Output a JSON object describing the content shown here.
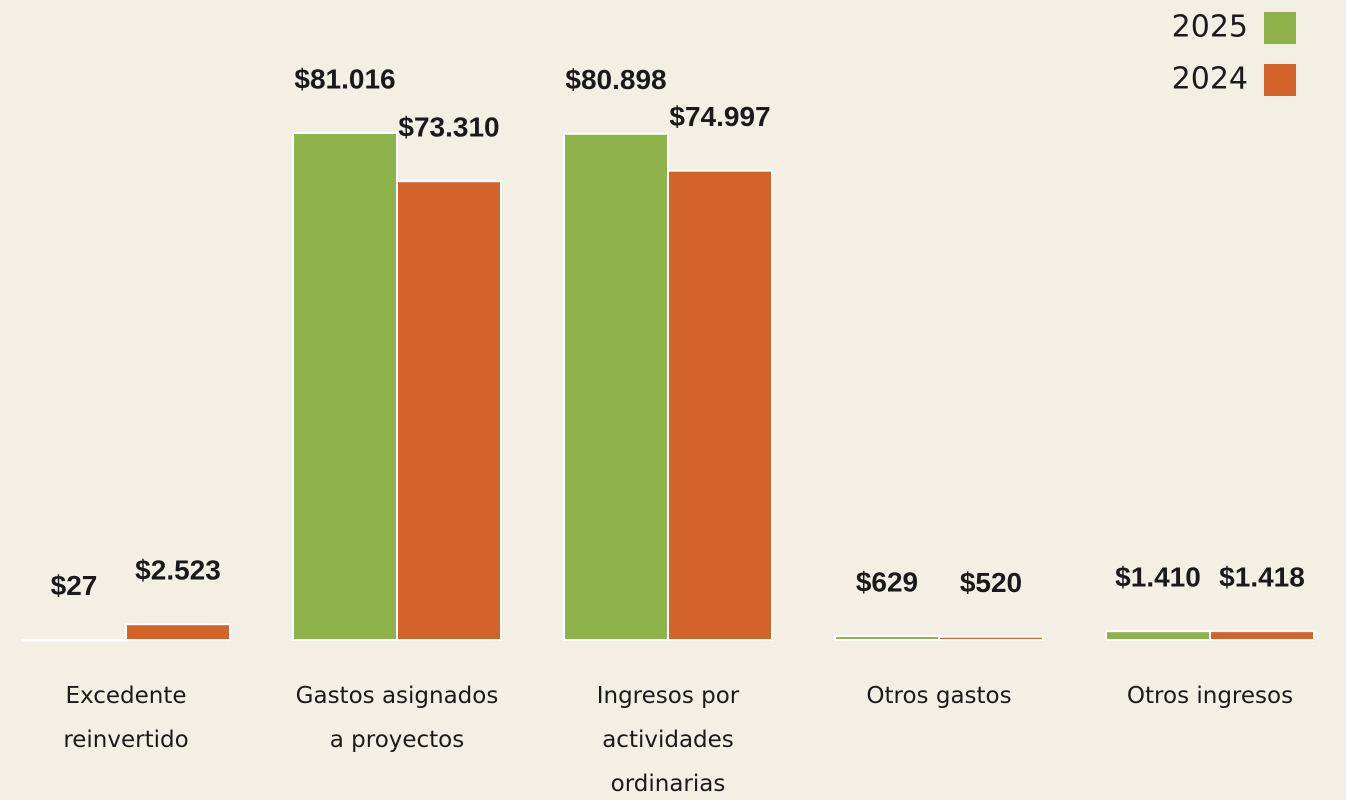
{
  "chart_data": {
    "type": "bar",
    "categories": [
      "Excedente\nreinvertido",
      "Gastos asignados\na proyectos",
      "Ingresos por\nactividades\nordinarias",
      "Otros gastos",
      "Otros ingresos"
    ],
    "series": [
      {
        "name": "2025",
        "color": "#8db34a",
        "values": [
          27,
          81016,
          80898,
          629,
          1410
        ],
        "value_labels": [
          "$27",
          "$81.016",
          "$80.898",
          "$629",
          "$1.410"
        ]
      },
      {
        "name": "2024",
        "color": "#d4622b",
        "values": [
          2523,
          73310,
          74997,
          520,
          1418
        ],
        "value_labels": [
          "$2.523",
          "$73.310",
          "$74.997",
          "$520",
          "$1.418"
        ]
      }
    ],
    "legend": "top-right"
  }
}
